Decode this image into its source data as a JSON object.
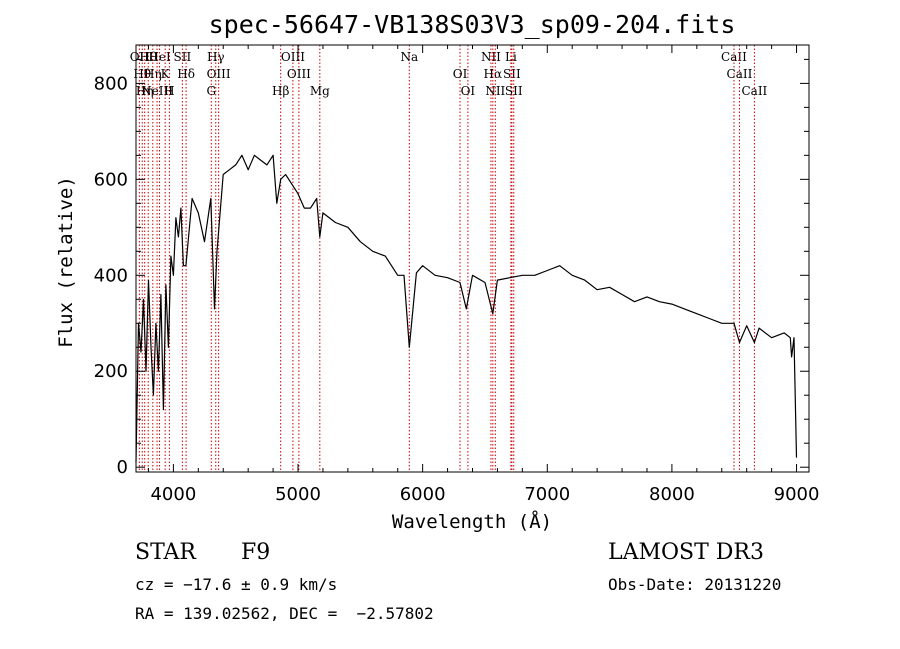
{
  "chart_data": {
    "type": "line",
    "title": "spec-56647-VB138S03V3_sp09-204.fits",
    "xlabel": "Wavelength (Å)",
    "ylabel": "Flux (relative)",
    "xlim": [
      3700,
      9100
    ],
    "ylim": [
      -10,
      880
    ],
    "xticks": [
      4000,
      5000,
      6000,
      7000,
      8000,
      9000
    ],
    "yticks": [
      0,
      200,
      400,
      600,
      800
    ],
    "series": [
      {
        "name": "flux",
        "x": [
          3700,
          3720,
          3740,
          3760,
          3780,
          3800,
          3820,
          3840,
          3860,
          3880,
          3900,
          3920,
          3940,
          3960,
          3980,
          4000,
          4020,
          4040,
          4060,
          4080,
          4100,
          4150,
          4200,
          4250,
          4300,
          4330,
          4350,
          4400,
          4450,
          4500,
          4550,
          4600,
          4650,
          4700,
          4750,
          4800,
          4830,
          4861,
          4900,
          4950,
          5000,
          5050,
          5100,
          5150,
          5175,
          5200,
          5300,
          5400,
          5500,
          5600,
          5700,
          5800,
          5850,
          5893,
          5950,
          6000,
          6100,
          6200,
          6300,
          6350,
          6400,
          6500,
          6563,
          6600,
          6700,
          6800,
          6900,
          7000,
          7100,
          7200,
          7300,
          7400,
          7500,
          7600,
          7700,
          7800,
          7900,
          8000,
          8100,
          8200,
          8300,
          8400,
          8498,
          8542,
          8600,
          8662,
          8700,
          8800,
          8900,
          8950,
          8960,
          8980,
          9000
        ],
        "y": [
          10,
          300,
          240,
          350,
          200,
          390,
          250,
          150,
          300,
          200,
          360,
          120,
          380,
          250,
          440,
          400,
          520,
          480,
          540,
          420,
          420,
          560,
          530,
          470,
          560,
          330,
          450,
          610,
          620,
          630,
          650,
          620,
          650,
          640,
          630,
          650,
          550,
          600,
          610,
          590,
          570,
          540,
          540,
          560,
          480,
          530,
          510,
          500,
          470,
          450,
          440,
          400,
          400,
          250,
          405,
          420,
          400,
          395,
          385,
          330,
          400,
          385,
          320,
          390,
          395,
          400,
          400,
          410,
          420,
          400,
          390,
          370,
          375,
          360,
          345,
          355,
          345,
          340,
          330,
          320,
          310,
          300,
          300,
          260,
          295,
          260,
          290,
          270,
          280,
          270,
          230,
          270,
          20
        ]
      }
    ],
    "spectral_lines": [
      {
        "wavelength": 3727,
        "label": "OII"
      },
      {
        "wavelength": 3750,
        "label": "Hθ"
      },
      {
        "wavelength": 3770,
        "label": "Hη"
      },
      {
        "wavelength": 3798,
        "label": "Hθ"
      },
      {
        "wavelength": 3835,
        "label": "Hη"
      },
      {
        "wavelength": 3869,
        "label": "NeIII"
      },
      {
        "wavelength": 3889,
        "label": "HeI"
      },
      {
        "wavelength": 3934,
        "label": "K"
      },
      {
        "wavelength": 3968,
        "label": "H"
      },
      {
        "wavelength": 4072,
        "label": "SII"
      },
      {
        "wavelength": 4102,
        "label": "Hδ"
      },
      {
        "wavelength": 4304,
        "label": "G"
      },
      {
        "wavelength": 4340,
        "label": "Hγ"
      },
      {
        "wavelength": 4363,
        "label": "OIII"
      },
      {
        "wavelength": 4861,
        "label": "Hβ"
      },
      {
        "wavelength": 4959,
        "label": "OIII"
      },
      {
        "wavelength": 5007,
        "label": "OIII"
      },
      {
        "wavelength": 5175,
        "label": "Mg"
      },
      {
        "wavelength": 5893,
        "label": "Na"
      },
      {
        "wavelength": 6300,
        "label": "OI"
      },
      {
        "wavelength": 6363,
        "label": "OI"
      },
      {
        "wavelength": 6548,
        "label": "NII"
      },
      {
        "wavelength": 6563,
        "label": "Hα"
      },
      {
        "wavelength": 6583,
        "label": "NII"
      },
      {
        "wavelength": 6708,
        "label": "Li"
      },
      {
        "wavelength": 6716,
        "label": "SII"
      },
      {
        "wavelength": 6731,
        "label": "SII"
      },
      {
        "wavelength": 8498,
        "label": "CaII"
      },
      {
        "wavelength": 8542,
        "label": "CaII"
      },
      {
        "wavelength": 8662,
        "label": "CaII"
      }
    ],
    "line_color": "#000000",
    "marker_color": "#cc0000",
    "legend": "none",
    "grid": false
  },
  "info": {
    "object_class": "STAR",
    "subclass": "F9",
    "survey": "LAMOST DR3",
    "redshift": "cz = −17.6 ± 0.9 km/s",
    "obs_date": "Obs-Date: 20131220",
    "coordinates": "RA = 139.02562, DEC =  −2.57802"
  }
}
